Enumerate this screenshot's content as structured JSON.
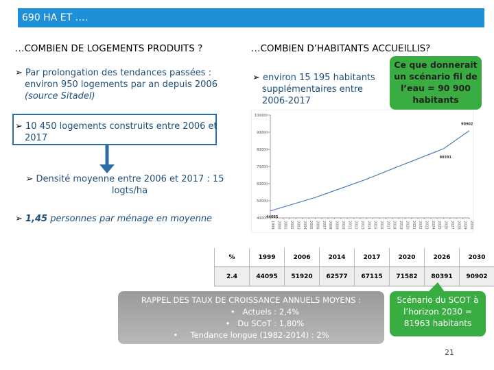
{
  "header": {
    "title": "690 HA ET …."
  },
  "left": {
    "heading": "…COMBIEN DE LOGEMENTS PRODUITS ?",
    "bullets": [
      {
        "text": "Par prolongation des tendances passées : environ 950 logements par an depuis 2006",
        "source": "(source Sitadel)"
      },
      {
        "text": "10 450 logements construits entre 2006 et 2017"
      },
      {
        "text": "Densité moyenne entre 2006 et 2017 : 15 logts/ha"
      },
      {
        "lead": "1,45",
        "text": "personnes par ménage en moyenne"
      }
    ]
  },
  "right": {
    "heading": "…COMBIEN D’HABITANTS ACCUEILLIS?",
    "bullet": "environ 15 195 habitants supplémentaires entre 2006-2017",
    "callout": "Ce que donnerait un scénario fil de l’eau = 90 900 habitants"
  },
  "chart_data": {
    "type": "line",
    "color": "#4a7ebb",
    "x": [
      1999,
      2006,
      2014,
      2017,
      2020,
      2026,
      2030
    ],
    "values": [
      44095,
      51920,
      62577,
      67115,
      71582,
      80391,
      90902
    ],
    "xlim": [
      1999,
      2030
    ],
    "xticks": [
      1999,
      2000,
      2001,
      2002,
      2003,
      2004,
      2005,
      2006,
      2007,
      2008,
      2009,
      2010,
      2011,
      2012,
      2013,
      2014,
      2015,
      2016,
      2017,
      2018,
      2019,
      2020,
      2021,
      2022,
      2023,
      2024,
      2025,
      2026,
      2027,
      2028,
      2029,
      2030
    ],
    "ylim": [
      40000,
      100000
    ],
    "yticks": [
      40000,
      50000,
      60000,
      70000,
      80000,
      90000,
      100000
    ],
    "annotations": [
      {
        "text": "44095",
        "x": 1999,
        "y": 44095
      },
      {
        "text": "80391",
        "x": 2026,
        "y": 80391
      },
      {
        "text": "90902",
        "x": 2030,
        "y": 90902
      }
    ]
  },
  "table": {
    "header": [
      "%",
      "1999",
      "2006",
      "2014",
      "2017",
      "2020",
      "2026",
      "2030"
    ],
    "rows": [
      [
        "2.4",
        "44095",
        "51920",
        "62577",
        "67115",
        "71582",
        "80391",
        "90902"
      ]
    ]
  },
  "recap": {
    "title": "RAPPEL DES TAUX DE CROISSANCE ANNUELS MOYENS :",
    "items": [
      "Actuels : 2,4%",
      "Du SCoT : 1,80%",
      "Tendance longue (1982-2014) : 2%"
    ]
  },
  "scot": "Scénario du SCOT à l’horizon 2030 = 81963 habitants",
  "page_number": "21"
}
